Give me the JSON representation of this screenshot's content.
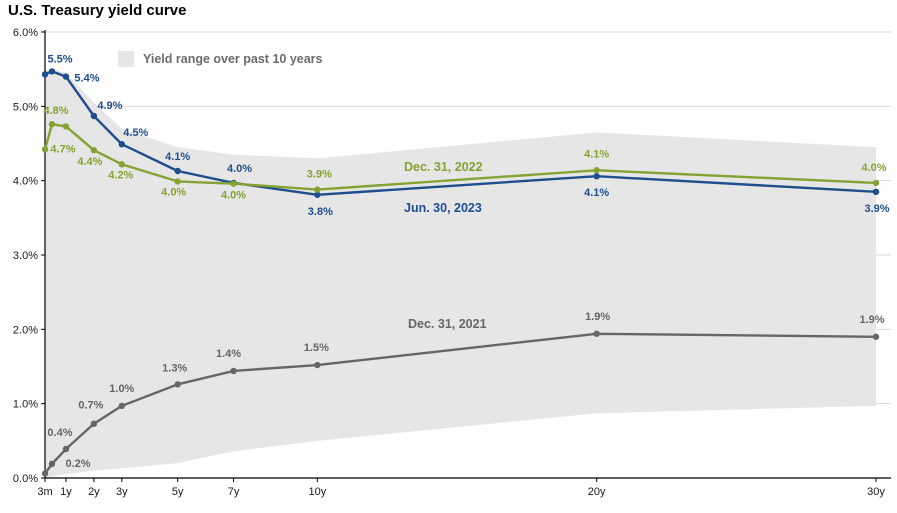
{
  "page": {
    "title": "U.S. Treasury yield curve"
  },
  "chart_data": {
    "type": "line",
    "title": "U.S. Treasury yield curve",
    "xlabel": "",
    "ylabel": "",
    "ylim": [
      0,
      6
    ],
    "grid": "horizontal",
    "legend_position": "top-left inside plot",
    "y_ticks": [
      "0.0%",
      "1.0%",
      "2.0%",
      "3.0%",
      "4.0%",
      "5.0%",
      "6.0%"
    ],
    "x_axis": {
      "labels": [
        "3m",
        "1y",
        "2y",
        "3y",
        "5y",
        "7y",
        "10y",
        "20y",
        "30y"
      ],
      "years": [
        0.25,
        1,
        2,
        3,
        5,
        7,
        10,
        20,
        30
      ]
    },
    "maturity_names": [
      "3m",
      "6m",
      "1y",
      "2y",
      "3y",
      "5y",
      "7y",
      "10y",
      "20y",
      "30y"
    ],
    "maturities_years": [
      0.25,
      0.5,
      1,
      2,
      3,
      5,
      7,
      10,
      20,
      30
    ],
    "series": [
      {
        "name": "Jun. 30, 2023",
        "color": "#1f4e8c",
        "values": [
          5.43,
          5.47,
          5.4,
          4.87,
          4.49,
          4.13,
          3.97,
          3.81,
          4.06,
          3.85
        ],
        "labels": [
          null,
          "5.5%",
          "5.4%",
          "4.9%",
          "4.5%",
          "4.1%",
          "4.0%",
          "3.8%",
          "4.1%",
          "3.9%"
        ]
      },
      {
        "name": "Dec. 31, 2022",
        "color": "#84a333",
        "values": [
          4.42,
          4.76,
          4.73,
          4.41,
          4.22,
          3.99,
          3.96,
          3.88,
          4.14,
          3.97
        ],
        "labels": [
          null,
          "4.8%",
          "4.7%",
          "4.4%",
          "4.2%",
          "4.0%",
          "4.0%",
          "3.9%",
          "4.1%",
          "4.0%"
        ]
      },
      {
        "name": "Dec. 31, 2021",
        "color": "#666666",
        "values": [
          0.06,
          0.19,
          0.39,
          0.73,
          0.97,
          1.26,
          1.44,
          1.52,
          1.94,
          1.9
        ],
        "labels": [
          null,
          "0.2%",
          "0.4%",
          "0.7%",
          "1.0%",
          "1.3%",
          "1.4%",
          "1.5%",
          "1.9%",
          "1.9%"
        ]
      }
    ],
    "band": {
      "name": "Yield range over past 10 years",
      "color": "#e6e6e6",
      "upper": [
        5.48,
        5.5,
        5.45,
        5.05,
        4.7,
        4.45,
        4.35,
        4.3,
        4.65,
        4.45
      ],
      "lower": [
        0.0,
        0.02,
        0.05,
        0.1,
        0.13,
        0.2,
        0.36,
        0.5,
        0.87,
        0.97
      ]
    }
  }
}
